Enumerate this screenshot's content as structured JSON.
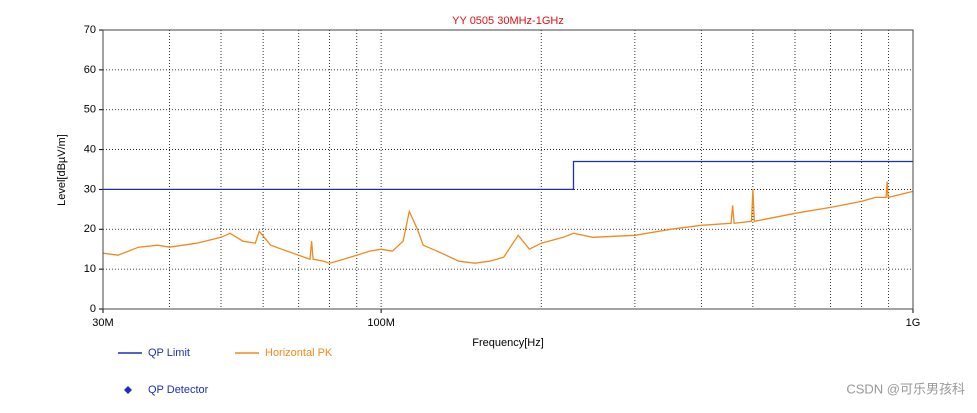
{
  "chart_data": {
    "type": "line",
    "title": "YY 0505 30MHz-1GHz",
    "x_label": "Frequency[Hz]",
    "y_label": "Level[dBµV/m]",
    "xlog": true,
    "xlim": [
      30000000,
      1000000000
    ],
    "xticks": [
      {
        "value": 30000000,
        "label": "30M"
      },
      {
        "value": 100000000,
        "label": "100M"
      },
      {
        "value": 1000000000,
        "label": "1G"
      }
    ],
    "xgrid": [
      40000000,
      50000000,
      60000000,
      70000000,
      80000000,
      90000000,
      200000000,
      300000000,
      400000000,
      500000000,
      600000000,
      700000000,
      800000000,
      900000000
    ],
    "ylim": [
      0,
      70
    ],
    "yticks": [
      0,
      10,
      20,
      30,
      40,
      50,
      60,
      70
    ],
    "grid": true,
    "series": [
      {
        "name": "QP Limit",
        "color": "#1f2fb8",
        "marker": "line",
        "x": [
          30000000,
          230000000,
          230000000,
          1000000000
        ],
        "values": [
          30,
          30,
          37,
          37
        ]
      },
      {
        "name": "Horizontal PK",
        "color": "#f08a1e",
        "marker": "line",
        "x": [
          30000000,
          32000000,
          35000000,
          38000000,
          40000000,
          45000000,
          50000000,
          52000000,
          55000000,
          58000000,
          59000000,
          62000000,
          65000000,
          70000000,
          73500000,
          74000000,
          74500000,
          78000000,
          80000000,
          85000000,
          90000000,
          95000000,
          100000000,
          105000000,
          110000000,
          113000000,
          117000000,
          120000000,
          130000000,
          140000000,
          150000000,
          160000000,
          170000000,
          181000000,
          190000000,
          200000000,
          220000000,
          230000000,
          250000000,
          300000000,
          350000000,
          400000000,
          455000000,
          458000000,
          461000000,
          497000000,
          500000000,
          503000000,
          550000000,
          600000000,
          700000000,
          800000000,
          850000000,
          890000000,
          894000000,
          898000000,
          1000000000
        ],
        "values": [
          14,
          13.5,
          15.5,
          16,
          15.5,
          16.5,
          18,
          19,
          17,
          16.5,
          19.5,
          16,
          15,
          13.5,
          12.5,
          17,
          12.5,
          12,
          11.5,
          12.5,
          13.5,
          14.5,
          15,
          14.5,
          17,
          24.5,
          20,
          16,
          14,
          12,
          11.5,
          12,
          13,
          18.5,
          15,
          16.5,
          18,
          19,
          18,
          18.5,
          20,
          21,
          21.5,
          26,
          21.5,
          22,
          30,
          22,
          23,
          24,
          25.5,
          27,
          28,
          28,
          32,
          28,
          29.5
        ]
      },
      {
        "name": "QP Detector",
        "color": "#1f2fb8",
        "marker": "diamond",
        "x": [],
        "values": []
      }
    ],
    "watermark": "CSDN @可乐男孩科"
  }
}
